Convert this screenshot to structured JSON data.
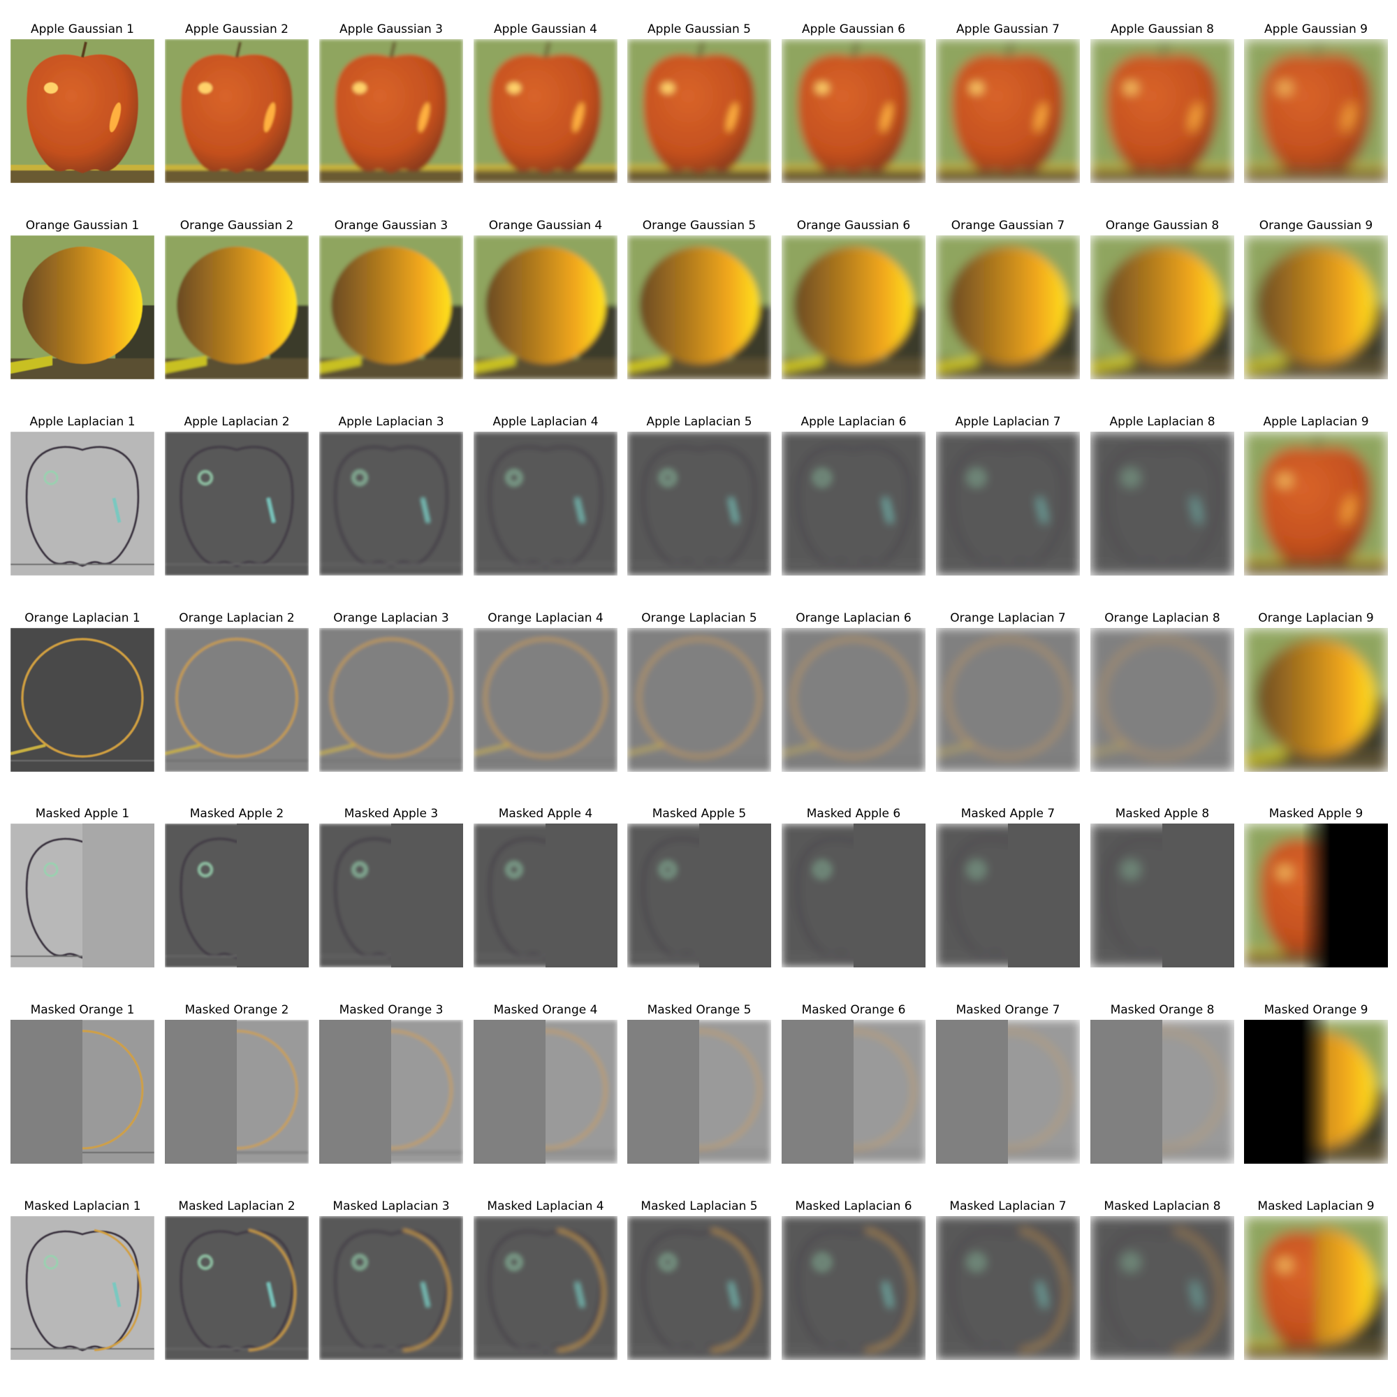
{
  "rows": [
    {
      "titles": [
        "Apple Gaussian 1",
        "Apple Gaussian 2",
        "Apple Gaussian 3",
        "Apple Gaussian 4",
        "Apple Gaussian 5",
        "Apple Gaussian 6",
        "Apple Gaussian 7",
        "Apple Gaussian 8",
        "Apple Gaussian 9"
      ],
      "subject": "apple-photo",
      "treatment": "gaussian"
    },
    {
      "titles": [
        "Orange Gaussian 1",
        "Orange Gaussian 2",
        "Orange Gaussian 3",
        "Orange Gaussian 4",
        "Orange Gaussian 5",
        "Orange Gaussian 6",
        "Orange Gaussian 7",
        "Orange Gaussian 8",
        "Orange Gaussian 9"
      ],
      "subject": "orange-photo",
      "treatment": "gaussian"
    },
    {
      "titles": [
        "Apple Laplacian 1",
        "Apple Laplacian 2",
        "Apple Laplacian 3",
        "Apple Laplacian 4",
        "Apple Laplacian 5",
        "Apple Laplacian 6",
        "Apple Laplacian 7",
        "Apple Laplacian 8",
        "Apple Laplacian 9"
      ],
      "subject": "apple-photo",
      "treatment": "laplacian"
    },
    {
      "titles": [
        "Orange Laplacian 1",
        "Orange Laplacian 2",
        "Orange Laplacian 3",
        "Orange Laplacian 4",
        "Orange Laplacian 5",
        "Orange Laplacian 6",
        "Orange Laplacian 7",
        "Orange Laplacian 8",
        "Orange Laplacian 9"
      ],
      "subject": "orange-photo",
      "treatment": "laplacian"
    },
    {
      "titles": [
        "Masked Apple 1",
        "Masked Apple 2",
        "Masked Apple 3",
        "Masked Apple 4",
        "Masked Apple 5",
        "Masked Apple 6",
        "Masked Apple 7",
        "Masked Apple 8",
        "Masked Apple 9"
      ],
      "subject": "apple-photo",
      "treatment": "masked-left"
    },
    {
      "titles": [
        "Masked Orange 1",
        "Masked Orange 2",
        "Masked Orange 3",
        "Masked Orange 4",
        "Masked Orange 5",
        "Masked Orange 6",
        "Masked Orange 7",
        "Masked Orange 8",
        "Masked Orange 9"
      ],
      "subject": "orange-photo",
      "treatment": "masked-right"
    },
    {
      "titles": [
        "Masked Laplacian 1",
        "Masked Laplacian 2",
        "Masked Laplacian 3",
        "Masked Laplacian 4",
        "Masked Laplacian 5",
        "Masked Laplacian 6",
        "Masked Laplacian 7",
        "Masked Laplacian 8",
        "Masked Laplacian 9"
      ],
      "subject": "blend-photo",
      "treatment": "blended"
    }
  ],
  "colors": {
    "apple_body": "#d9642a",
    "apple_highlight": "#ffd26a",
    "apple_dark": "#8a3a1a",
    "orange_body": "#f2a81c",
    "orange_bright": "#ffe21a",
    "orange_dark": "#6a4a24",
    "background_green": "#8fa55e",
    "table_yellow": "#c8b23a",
    "laplacian_gray": "#585858",
    "laplacian_light": "#b8b8b8",
    "orange_lap_gray": "#808080",
    "mask_black": "#000000"
  }
}
